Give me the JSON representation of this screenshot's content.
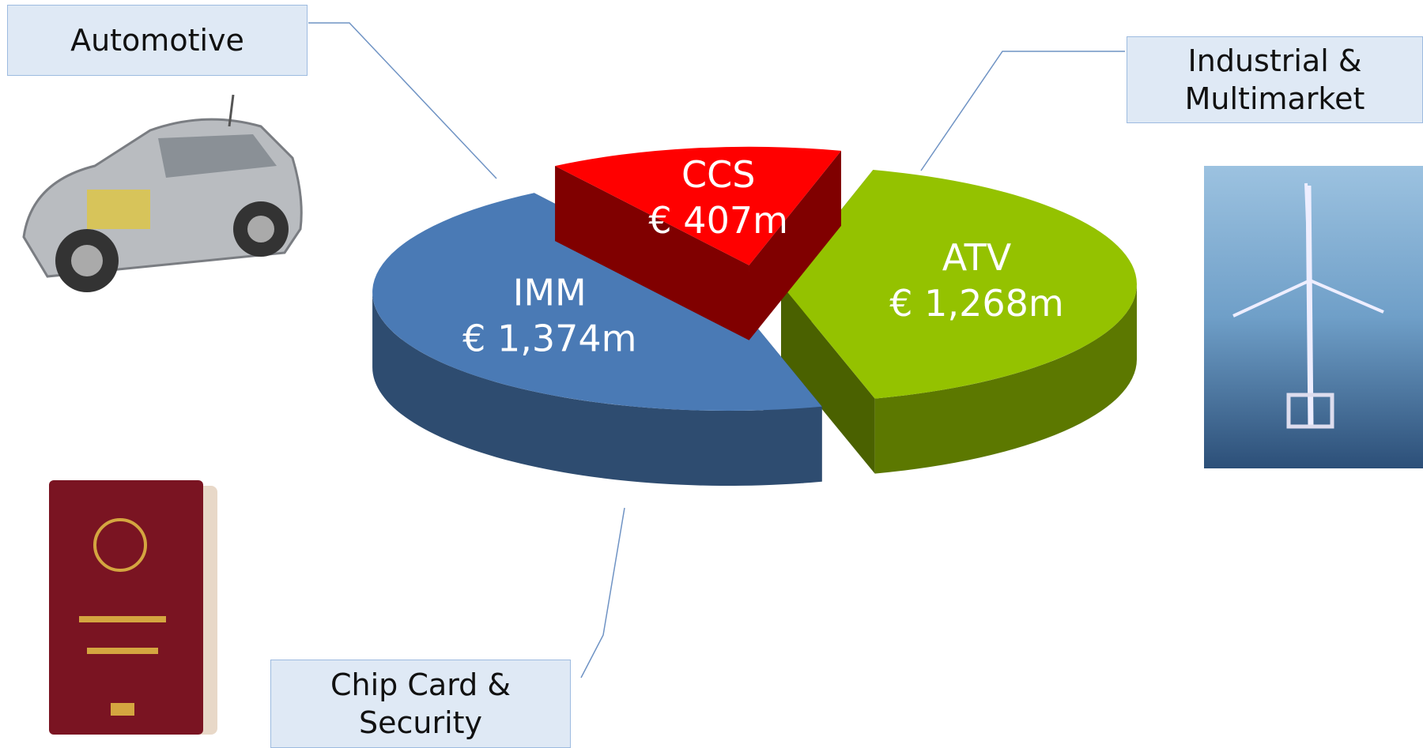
{
  "chart_data": {
    "type": "pie3d",
    "categories": [
      "ATV",
      "IMM",
      "CCS"
    ],
    "values": [
      1268,
      1374,
      407
    ],
    "value_labels": [
      "€ 1,268m",
      "€ 1,374m",
      "€ 407m"
    ],
    "colors": [
      "#94c200",
      "#4a7ab5",
      "#ff0000"
    ],
    "annotations": [
      "Automotive",
      "Industrial & Multimarket",
      "Chip Card & Security"
    ]
  }
}
